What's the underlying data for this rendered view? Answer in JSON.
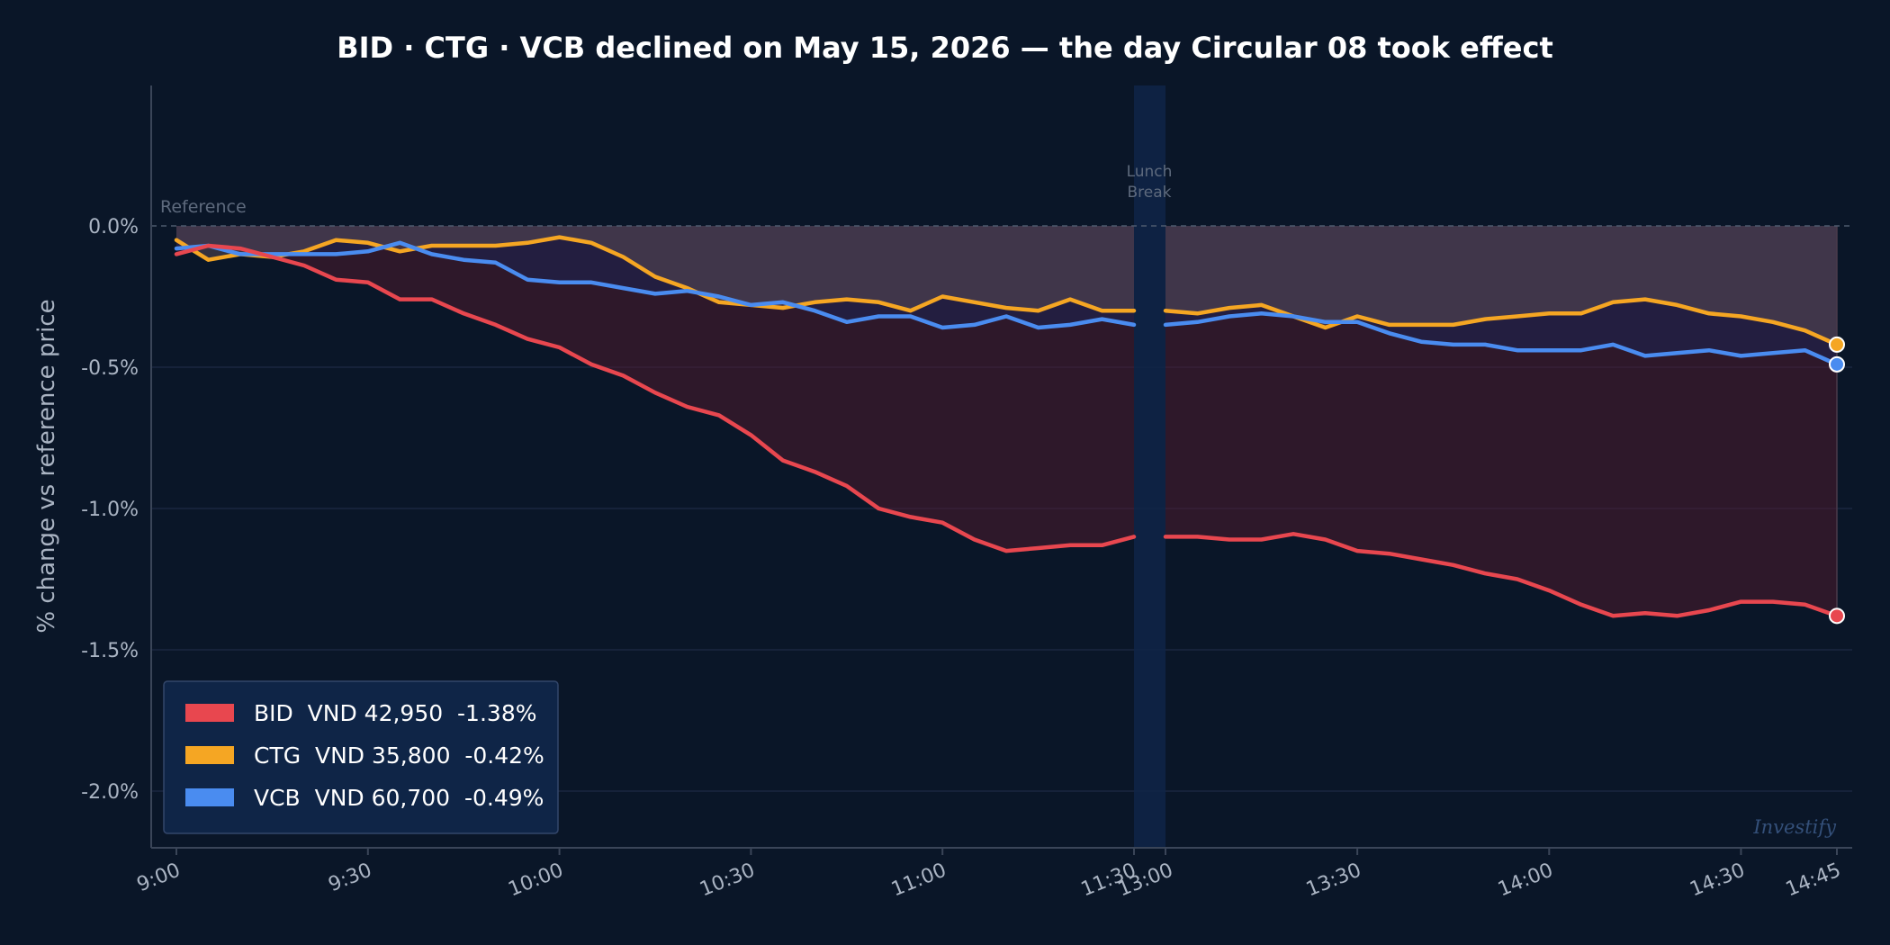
{
  "chart_data": {
    "type": "line",
    "title": "BID · CTG · VCB declined on May 15, 2026 — the day Circular 08 took effect",
    "ylabel": "% change vs reference price",
    "ylim": [
      -2.2,
      0.5
    ],
    "yticks": [
      0.0,
      -0.5,
      -1.0,
      -1.5,
      -2.0
    ],
    "ytick_labels": [
      "0.0%",
      "-0.5%",
      "-1.0%",
      "-1.5%",
      "-2.0%"
    ],
    "xticks": [
      "9:00",
      "9:30",
      "10:00",
      "10:30",
      "11:00",
      "11:30",
      "13:00",
      "13:30",
      "14:00",
      "14:30",
      "14:45"
    ],
    "reference_label": "Reference",
    "lunch_label": [
      "Lunch",
      "Break"
    ],
    "watermark": "Investify",
    "grid": true,
    "legend_placement": "bottom-left",
    "sessions": {
      "morning": [
        "9:00",
        "9:05",
        "9:10",
        "9:15",
        "9:20",
        "9:25",
        "9:30",
        "9:35",
        "9:40",
        "9:45",
        "9:50",
        "9:55",
        "10:00",
        "10:05",
        "10:10",
        "10:15",
        "10:20",
        "10:25",
        "10:30",
        "10:35",
        "10:40",
        "10:45",
        "10:50",
        "10:55",
        "11:00",
        "11:05",
        "11:10",
        "11:15",
        "11:20",
        "11:25",
        "11:30"
      ],
      "afternoon": [
        "13:00",
        "13:05",
        "13:10",
        "13:15",
        "13:20",
        "13:25",
        "13:30",
        "13:35",
        "13:40",
        "13:45",
        "13:50",
        "13:55",
        "14:00",
        "14:05",
        "14:10",
        "14:15",
        "14:20",
        "14:25",
        "14:30",
        "14:35",
        "14:40",
        "14:45"
      ]
    },
    "series": [
      {
        "name": "BID",
        "color": "#e8474f",
        "legend": "BID  VND 42,950  -1.38%",
        "morning": [
          -0.1,
          -0.07,
          -0.08,
          -0.11,
          -0.14,
          -0.19,
          -0.2,
          -0.26,
          -0.26,
          -0.31,
          -0.35,
          -0.4,
          -0.43,
          -0.49,
          -0.53,
          -0.59,
          -0.64,
          -0.67,
          -0.74,
          -0.83,
          -0.87,
          -0.92,
          -1.0,
          -1.03,
          -1.05,
          -1.11,
          -1.15,
          -1.14,
          -1.13,
          -1.13,
          -1.1
        ],
        "afternoon": [
          -1.1,
          -1.1,
          -1.11,
          -1.11,
          -1.09,
          -1.11,
          -1.15,
          -1.16,
          -1.18,
          -1.2,
          -1.23,
          -1.25,
          -1.29,
          -1.34,
          -1.38,
          -1.37,
          -1.38,
          -1.36,
          -1.33,
          -1.33,
          -1.34,
          -1.38
        ]
      },
      {
        "name": "CTG",
        "color": "#f5a623",
        "legend": "CTG  VND 35,800  -0.42%",
        "morning": [
          -0.05,
          -0.12,
          -0.1,
          -0.11,
          -0.09,
          -0.05,
          -0.06,
          -0.09,
          -0.07,
          -0.07,
          -0.07,
          -0.06,
          -0.04,
          -0.06,
          -0.11,
          -0.18,
          -0.22,
          -0.27,
          -0.28,
          -0.29,
          -0.27,
          -0.26,
          -0.27,
          -0.3,
          -0.25,
          -0.27,
          -0.29,
          -0.3,
          -0.26,
          -0.3,
          -0.3
        ],
        "afternoon": [
          -0.3,
          -0.31,
          -0.29,
          -0.28,
          -0.32,
          -0.36,
          -0.32,
          -0.35,
          -0.35,
          -0.35,
          -0.33,
          -0.32,
          -0.31,
          -0.31,
          -0.27,
          -0.26,
          -0.28,
          -0.31,
          -0.32,
          -0.34,
          -0.37,
          -0.42
        ]
      },
      {
        "name": "VCB",
        "color": "#4a8cf0",
        "legend": "VCB  VND 60,700  -0.49%",
        "morning": [
          -0.08,
          -0.07,
          -0.1,
          -0.1,
          -0.1,
          -0.1,
          -0.09,
          -0.06,
          -0.1,
          -0.12,
          -0.13,
          -0.19,
          -0.2,
          -0.2,
          -0.22,
          -0.24,
          -0.23,
          -0.25,
          -0.28,
          -0.27,
          -0.3,
          -0.34,
          -0.32,
          -0.32,
          -0.36,
          -0.35,
          -0.32,
          -0.36,
          -0.35,
          -0.33,
          -0.35
        ],
        "afternoon": [
          -0.35,
          -0.34,
          -0.32,
          -0.31,
          -0.32,
          -0.34,
          -0.34,
          -0.38,
          -0.41,
          -0.42,
          -0.42,
          -0.44,
          -0.44,
          -0.44,
          -0.42,
          -0.46,
          -0.45,
          -0.44,
          -0.46,
          -0.45,
          -0.44,
          -0.49
        ]
      }
    ]
  }
}
